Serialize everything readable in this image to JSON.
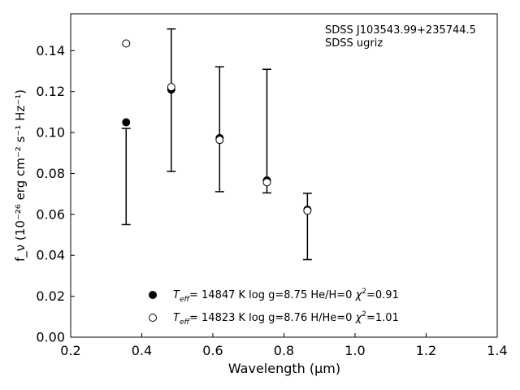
{
  "chart_data": {
    "type": "scatter",
    "title": "",
    "xlabel": "Wavelength (μm)",
    "ylabel": "f_ν (10⁻²⁶ erg cm⁻² s⁻¹ Hz⁻¹)",
    "xlim": [
      0.2,
      1.4
    ],
    "ylim": [
      0.0,
      0.158
    ],
    "xticks": [
      "0.2",
      "0.4",
      "0.6",
      "0.8",
      "1.0",
      "1.2",
      "1.4"
    ],
    "yticks": [
      "0.00",
      "0.02",
      "0.04",
      "0.06",
      "0.08",
      "0.10",
      "0.12",
      "0.14"
    ],
    "annotation": {
      "line1": "SDSS J103543.99+235744.5",
      "line2": "SDSS ugriz"
    },
    "observed": {
      "x": [
        0.356,
        0.483,
        0.619,
        0.752,
        0.866
      ],
      "y": [
        0.0785,
        0.1158,
        0.1016,
        0.1007,
        0.0541
      ],
      "err": [
        0.0235,
        0.0348,
        0.0305,
        0.0302,
        0.0162
      ]
    },
    "series": [
      {
        "name": "Teff= 14847 K  log g=8.75  He/H=0  χ²=0.91",
        "legend": {
          "sub_main": "T",
          "sub": "eff",
          "rest": "= 14847 K  log g=8.75  He/H=0  ",
          "chi": "χ",
          "sup": "2",
          "chi_val": "=0.91"
        },
        "marker": "filled-circle",
        "x": [
          0.356,
          0.483,
          0.619,
          0.752,
          0.866
        ],
        "y": [
          0.105,
          0.121,
          0.0973,
          0.0766,
          0.0623
        ]
      },
      {
        "name": "Teff= 14823 K  log g=8.76  H/He=0  χ²=1.01",
        "legend": {
          "sub_main": "T",
          "sub": "eff",
          "rest": "= 14823 K  log g=8.76  H/He=0  ",
          "chi": "χ",
          "sup": "2",
          "chi_val": "=1.01"
        },
        "marker": "open-circle",
        "x": [
          0.356,
          0.483,
          0.619,
          0.752,
          0.866
        ],
        "y": [
          0.1435,
          0.1222,
          0.0964,
          0.0757,
          0.0618
        ]
      }
    ]
  }
}
